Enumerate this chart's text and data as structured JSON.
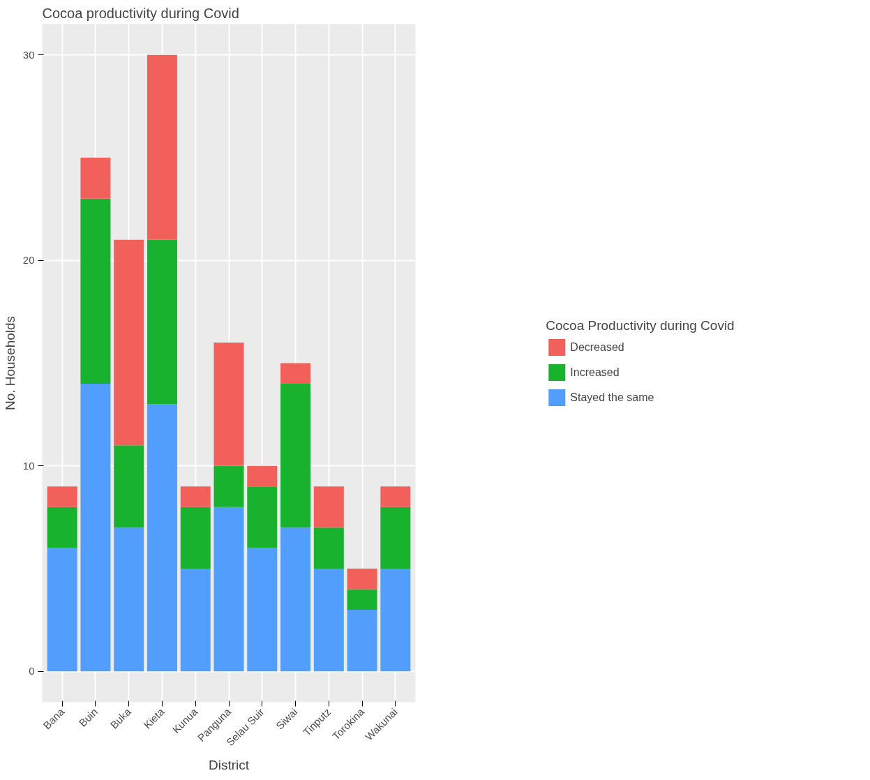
{
  "chart_data": {
    "type": "bar",
    "title": "Cocoa productivity during Covid",
    "xlabel": "District",
    "ylabel": "No. Households",
    "legend_title": "Cocoa Productivity during Covid",
    "categories": [
      "Bana",
      "Buin",
      "Buka",
      "Kieta",
      "Kunua",
      "Panguna",
      "Selau Suir",
      "Siwai",
      "Tinputz",
      "Torokina",
      "Wakunai"
    ],
    "stacked": true,
    "ylim": [
      -1.5,
      31.5
    ],
    "yticks": [
      0,
      10,
      20,
      30
    ],
    "grid": true,
    "legend": "right",
    "series": [
      {
        "name": "Stayed the same",
        "color": "#529efe",
        "values": [
          6,
          14,
          7,
          13,
          5,
          8,
          6,
          7,
          5,
          3,
          5
        ]
      },
      {
        "name": "Increased",
        "color": "#19b22f",
        "values": [
          2,
          9,
          4,
          8,
          3,
          2,
          3,
          7,
          2,
          1,
          3
        ]
      },
      {
        "name": "Decreased",
        "color": "#f2605b",
        "values": [
          1,
          2,
          10,
          9,
          1,
          6,
          1,
          1,
          2,
          1,
          1
        ]
      }
    ]
  }
}
